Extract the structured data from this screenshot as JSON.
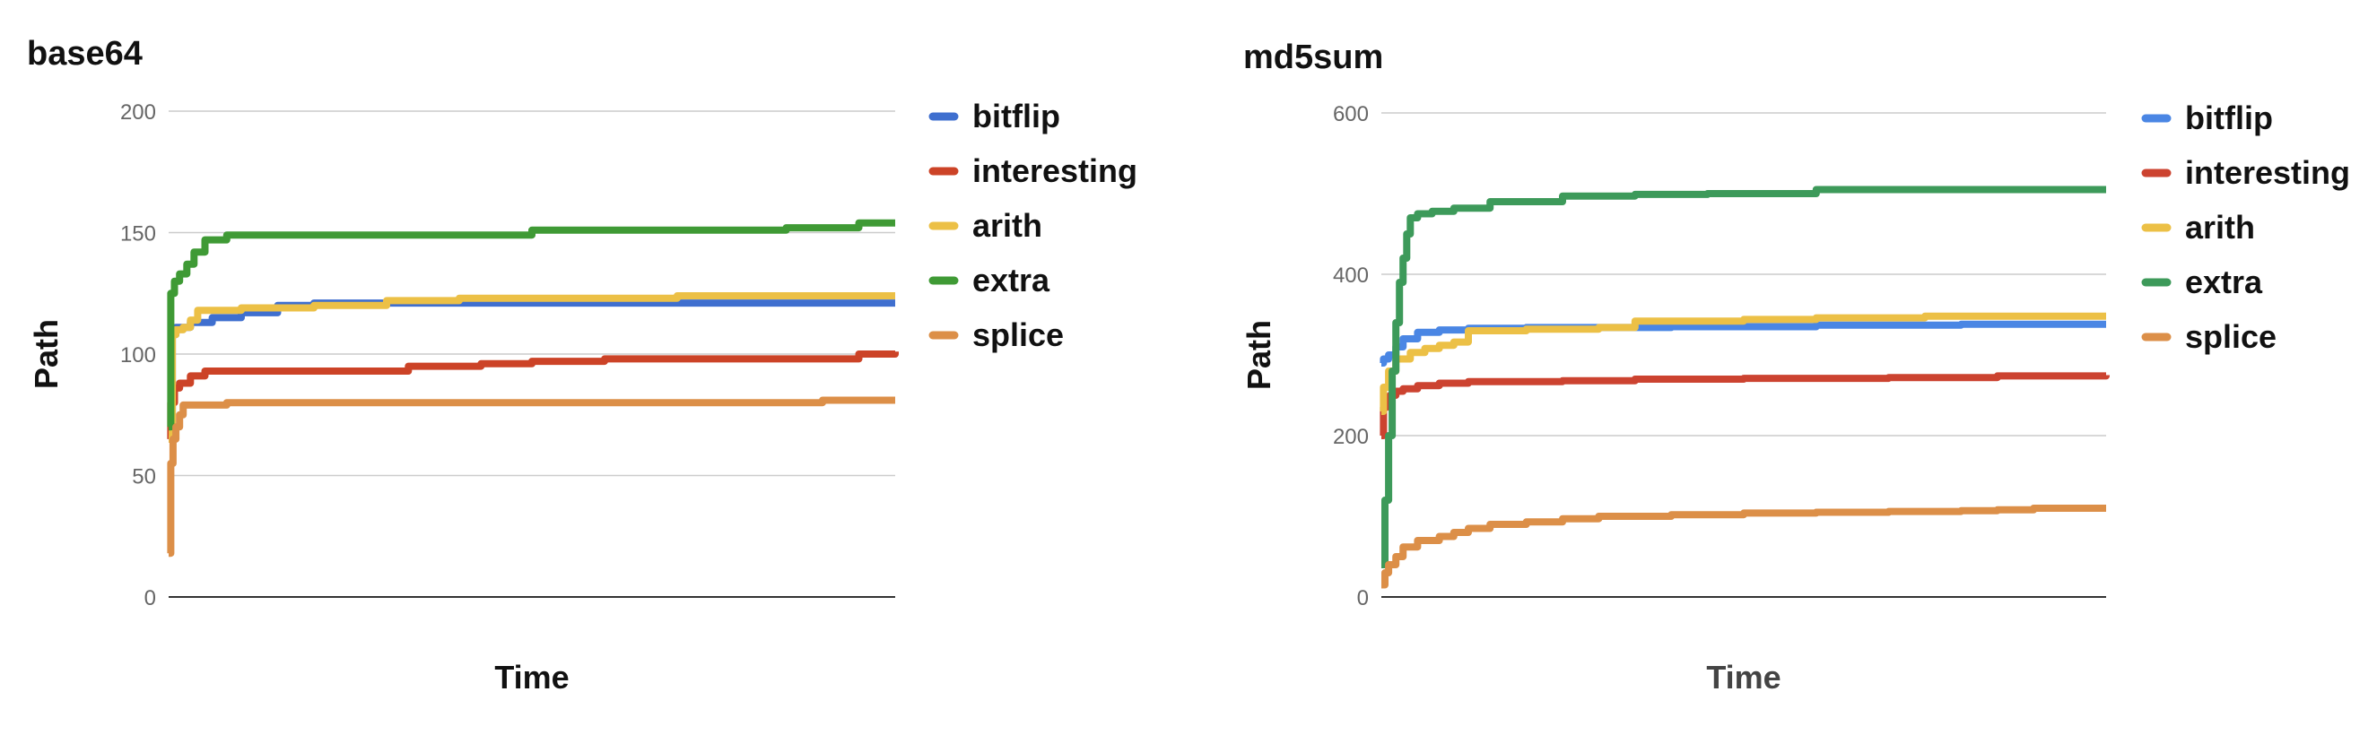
{
  "chart_data": [
    {
      "type": "line",
      "title": "base64",
      "xlabel": "Time",
      "ylabel": "Path",
      "ylim": [
        0,
        200
      ],
      "yticks": [
        "0",
        "50",
        "100",
        "150",
        "200"
      ],
      "xlim": [
        0,
        100
      ],
      "grid": true,
      "legend": "right",
      "series": [
        {
          "name": "bitflip",
          "color": "#3f6fcf",
          "x": [
            0,
            0.5,
            1,
            3,
            6,
            10,
            15,
            20,
            40,
            60,
            80,
            100
          ],
          "y": [
            70,
            108,
            111,
            113,
            115,
            117,
            120,
            121,
            121,
            121,
            121,
            121
          ]
        },
        {
          "name": "interesting",
          "color": "#cc4327",
          "x": [
            0,
            0.3,
            0.8,
            1.5,
            3,
            5,
            30,
            33,
            43,
            50,
            60,
            80,
            90,
            95,
            100
          ],
          "y": [
            65,
            80,
            86,
            88,
            91,
            93,
            93,
            95,
            96,
            97,
            98,
            98,
            98,
            100,
            101
          ]
        },
        {
          "name": "arith",
          "color": "#ecc046",
          "x": [
            0,
            0.5,
            1,
            2,
            3,
            4,
            10,
            20,
            30,
            40,
            55,
            70,
            80,
            100
          ],
          "y": [
            65,
            108,
            110,
            111,
            114,
            118,
            119,
            120,
            122,
            123,
            123,
            124,
            124,
            124
          ]
        },
        {
          "name": "extra",
          "color": "#3f9a35",
          "x": [
            0,
            0.3,
            0.8,
            1.5,
            2.5,
            3.5,
            5,
            8,
            25,
            45,
            50,
            80,
            85,
            95,
            100
          ],
          "y": [
            70,
            125,
            130,
            133,
            137,
            142,
            147,
            149,
            149,
            149,
            151,
            151,
            152,
            154,
            154
          ]
        },
        {
          "name": "splice",
          "color": "#dc8f48",
          "x": [
            0,
            0.3,
            0.6,
            1,
            1.5,
            2,
            8,
            30,
            60,
            85,
            90,
            100
          ],
          "y": [
            18,
            55,
            65,
            70,
            75,
            79,
            80,
            80,
            80,
            80,
            81,
            81
          ]
        }
      ]
    },
    {
      "type": "line",
      "title": "md5sum",
      "xlabel": "Time",
      "ylabel": "Path",
      "ylim": [
        0,
        600
      ],
      "yticks": [
        "0",
        "200",
        "400",
        "600"
      ],
      "xlim": [
        0,
        100
      ],
      "grid": true,
      "legend": "right",
      "series": [
        {
          "name": "bitflip",
          "color": "#4a86e4",
          "x": [
            0,
            0.3,
            1,
            2,
            3,
            5,
            8,
            12,
            20,
            40,
            60,
            80,
            100
          ],
          "y": [
            290,
            295,
            300,
            310,
            320,
            328,
            331,
            333,
            334,
            335,
            337,
            338,
            338
          ]
        },
        {
          "name": "interesting",
          "color": "#cc4330",
          "x": [
            0,
            0.3,
            0.7,
            1.2,
            2,
            3,
            5,
            8,
            12,
            25,
            35,
            50,
            70,
            85,
            100
          ],
          "y": [
            200,
            235,
            245,
            250,
            255,
            258,
            262,
            265,
            267,
            268,
            270,
            271,
            272,
            274,
            275
          ]
        },
        {
          "name": "arith",
          "color": "#ecc046",
          "x": [
            0,
            0.3,
            1,
            2,
            4,
            6,
            8,
            10,
            12,
            20,
            30,
            35,
            50,
            60,
            75,
            100
          ],
          "y": [
            230,
            260,
            280,
            295,
            303,
            308,
            312,
            316,
            330,
            332,
            334,
            342,
            344,
            346,
            348,
            348
          ]
        },
        {
          "name": "extra",
          "color": "#3d9a5a",
          "x": [
            0,
            0.5,
            1,
            1.5,
            2,
            2.5,
            3,
            3.5,
            4,
            5,
            7,
            10,
            15,
            25,
            35,
            45,
            55,
            60,
            80,
            100
          ],
          "y": [
            40,
            120,
            200,
            280,
            340,
            390,
            420,
            450,
            470,
            475,
            478,
            482,
            490,
            497,
            499,
            500,
            500,
            505,
            505,
            505
          ]
        },
        {
          "name": "splice",
          "color": "#dc8f48",
          "x": [
            0,
            0.5,
            1,
            2,
            3,
            5,
            8,
            10,
            12,
            15,
            20,
            25,
            30,
            40,
            50,
            60,
            70,
            80,
            85,
            90,
            100
          ],
          "y": [
            15,
            30,
            40,
            50,
            62,
            70,
            75,
            80,
            85,
            90,
            93,
            97,
            100,
            102,
            104,
            105,
            106,
            107,
            108,
            110,
            110
          ]
        }
      ]
    }
  ]
}
